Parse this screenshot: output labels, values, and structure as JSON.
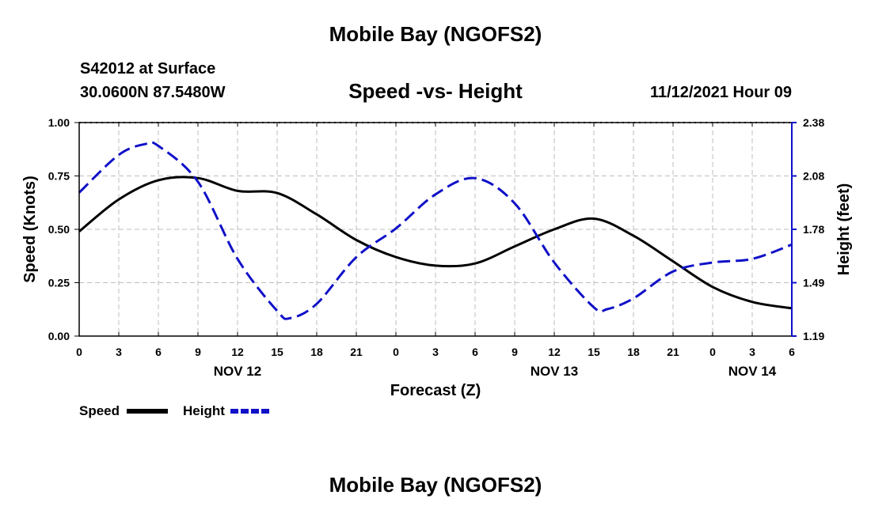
{
  "header": {
    "title": "Mobile Bay (NGOFS2)",
    "station": "S42012 at Surface",
    "coords": "30.0600N  87.5480W",
    "subtitle": "Speed -vs- Height",
    "datetime": "11/12/2021 Hour 09"
  },
  "footer": {
    "title": "Mobile Bay (NGOFS2)"
  },
  "colors": {
    "speed": "#000000",
    "height": "#1010c8",
    "grid": "#bdbdbd"
  },
  "chart_data": {
    "type": "line",
    "title": "Speed -vs- Height",
    "xlabel": "Forecast (Z)",
    "ylabel": "Speed (Knots)",
    "ylabel_right": "Height (feet)",
    "xlim": [
      0,
      54
    ],
    "ylim": [
      0,
      1
    ],
    "ylim_right": [
      1.19,
      2.38
    ],
    "grid": true,
    "x_tick_labels": [
      "0",
      "3",
      "6",
      "9",
      "12",
      "15",
      "18",
      "21",
      "0",
      "3",
      "6",
      "9",
      "12",
      "15",
      "18",
      "21",
      "0",
      "3",
      "6"
    ],
    "date_labels": [
      {
        "label": "NOV 12",
        "x": 12
      },
      {
        "label": "NOV 13",
        "x": 36
      },
      {
        "label": "NOV 14",
        "x": 51
      }
    ],
    "y_ticks_left": [
      "0.00",
      "0.25",
      "0.50",
      "0.75",
      "1.00"
    ],
    "y_ticks_right": [
      "1.19",
      "1.49",
      "1.78",
      "2.08",
      "2.38"
    ],
    "series": [
      {
        "name": "Speed",
        "axis": "left",
        "style": "solid",
        "x": [
          0,
          3,
          6,
          9,
          12,
          15,
          18,
          21,
          24,
          27,
          30,
          33,
          36,
          39,
          42,
          45,
          48,
          51,
          54
        ],
        "values": [
          0.49,
          0.64,
          0.73,
          0.74,
          0.68,
          0.67,
          0.57,
          0.45,
          0.37,
          0.33,
          0.34,
          0.42,
          0.5,
          0.55,
          0.47,
          0.35,
          0.23,
          0.16,
          0.13
        ]
      },
      {
        "name": "Height",
        "axis": "right",
        "style": "dashed",
        "x": [
          0,
          3,
          5,
          6,
          9,
          12,
          15,
          16,
          18,
          21,
          24,
          27,
          30,
          33,
          36,
          39,
          40,
          42,
          45,
          48,
          51,
          54
        ],
        "values": [
          1.99,
          2.2,
          2.26,
          2.25,
          2.05,
          1.62,
          1.33,
          1.29,
          1.37,
          1.63,
          1.79,
          1.98,
          2.07,
          1.93,
          1.6,
          1.35,
          1.34,
          1.4,
          1.55,
          1.6,
          1.62,
          1.7
        ]
      }
    ],
    "legend": [
      {
        "label": "Speed",
        "color": "#000000",
        "style": "solid"
      },
      {
        "label": "Height",
        "color": "#1010c8",
        "style": "dashed"
      }
    ]
  }
}
